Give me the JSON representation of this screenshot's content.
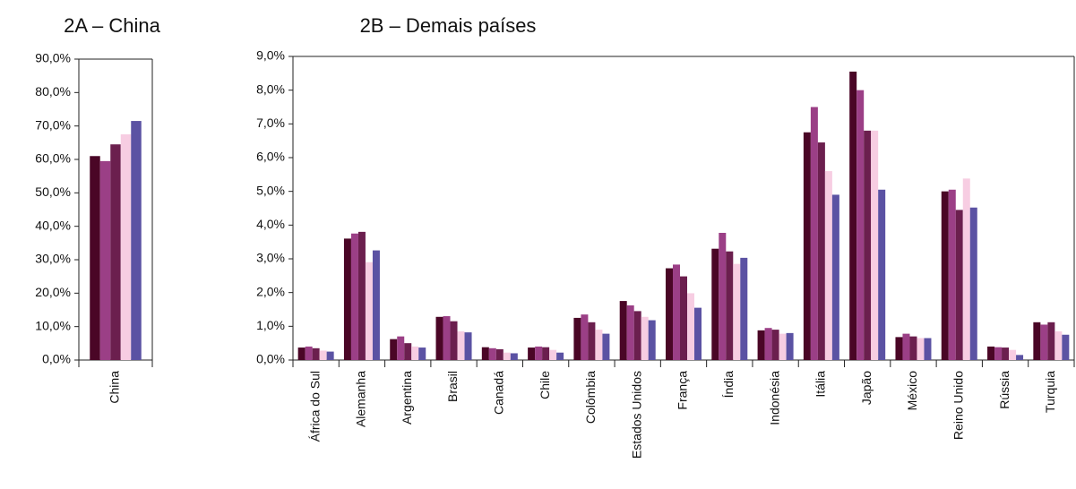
{
  "chart_data": [
    {
      "type": "bar",
      "title": "2A – China",
      "categories": [
        "China"
      ],
      "series": [
        {
          "color": "#4a0626",
          "values": [
            61
          ]
        },
        {
          "color": "#9b3f86",
          "values": [
            59.5
          ]
        },
        {
          "color": "#6b1f4e",
          "values": [
            64.5
          ]
        },
        {
          "color": "#f7cde2",
          "values": [
            67.5
          ]
        },
        {
          "color": "#5b52a3",
          "values": [
            71.5
          ]
        }
      ],
      "ylim": [
        0,
        90
      ],
      "yticks": [
        {
          "value": 0,
          "label": "0,0%"
        },
        {
          "value": 10,
          "label": "10,0%"
        },
        {
          "value": 20,
          "label": "20,0%"
        },
        {
          "value": 30,
          "label": "30,0%"
        },
        {
          "value": 40,
          "label": "40,0%"
        },
        {
          "value": 50,
          "label": "50,0%"
        },
        {
          "value": 60,
          "label": "60,0%"
        },
        {
          "value": 70,
          "label": "70,0%"
        },
        {
          "value": 80,
          "label": "80,0%"
        },
        {
          "value": 90,
          "label": "90,0%"
        }
      ]
    },
    {
      "type": "bar",
      "title": "2B – Demais países",
      "categories": [
        "África do Sul",
        "Alemanha",
        "Argentina",
        "Brasil",
        "Canadá",
        "Chile",
        "Colômbia",
        "Estados Unidos",
        "França",
        "Índia",
        "Indonésia",
        "Itália",
        "Japão",
        "México",
        "Reino Unido",
        "Rússia",
        "Turquia"
      ],
      "series": [
        {
          "color": "#4a0626",
          "values": [
            0.37,
            3.6,
            0.62,
            1.28,
            0.38,
            0.37,
            1.25,
            1.75,
            2.72,
            3.3,
            0.88,
            6.75,
            8.55,
            0.68,
            5.0,
            0.4,
            1.12
          ]
        },
        {
          "color": "#9b3f86",
          "values": [
            0.4,
            3.75,
            0.7,
            1.3,
            0.35,
            0.4,
            1.35,
            1.62,
            2.83,
            3.77,
            0.95,
            7.5,
            8.0,
            0.78,
            5.05,
            0.38,
            1.05
          ]
        },
        {
          "color": "#6b1f4e",
          "values": [
            0.35,
            3.8,
            0.5,
            1.15,
            0.32,
            0.38,
            1.12,
            1.45,
            2.48,
            3.22,
            0.9,
            6.45,
            6.8,
            0.7,
            4.45,
            0.37,
            1.12
          ]
        },
        {
          "color": "#f7cde2",
          "values": [
            0.28,
            2.9,
            0.4,
            0.85,
            0.22,
            0.3,
            0.9,
            1.28,
            1.98,
            2.85,
            0.78,
            5.6,
            6.8,
            0.65,
            5.38,
            0.3,
            0.85
          ]
        },
        {
          "color": "#5b52a3",
          "values": [
            0.25,
            3.25,
            0.37,
            0.82,
            0.2,
            0.22,
            0.78,
            1.18,
            1.55,
            3.03,
            0.8,
            4.9,
            5.05,
            0.65,
            4.52,
            0.15,
            0.75
          ]
        }
      ],
      "ylim": [
        0,
        9
      ],
      "yticks": [
        {
          "value": 0,
          "label": "0,0%"
        },
        {
          "value": 1,
          "label": "1,0%"
        },
        {
          "value": 2,
          "label": "2,0%"
        },
        {
          "value": 3,
          "label": "3,0%"
        },
        {
          "value": 4,
          "label": "4,0%"
        },
        {
          "value": 5,
          "label": "5,0%"
        },
        {
          "value": 6,
          "label": "6,0%"
        },
        {
          "value": 7,
          "label": "7,0%"
        },
        {
          "value": 8,
          "label": "8,0%"
        },
        {
          "value": 9,
          "label": "9,0%"
        }
      ]
    }
  ]
}
